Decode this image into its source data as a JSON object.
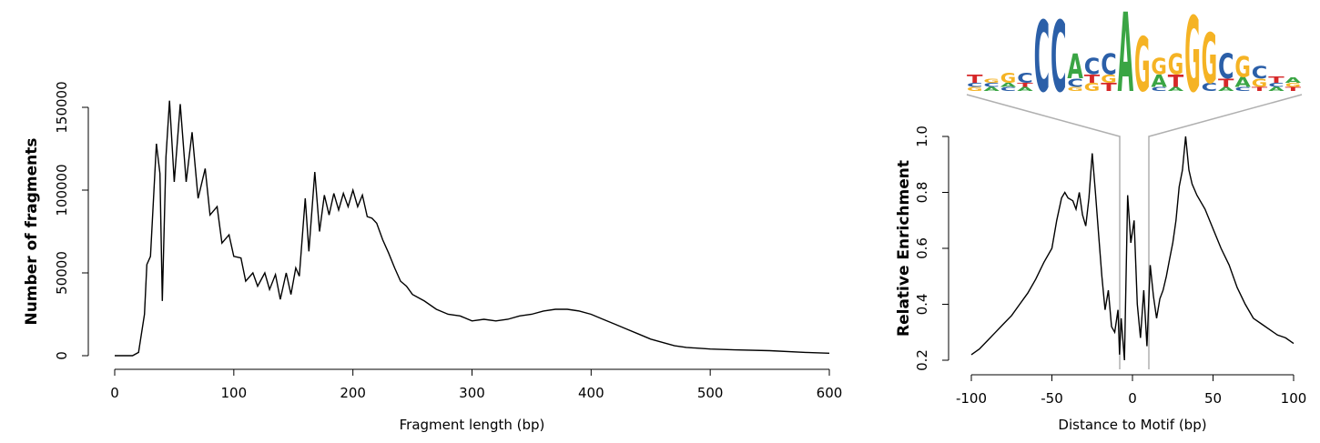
{
  "chart_data": [
    {
      "type": "line",
      "x_label": "Fragment length (bp)",
      "y_label": "Number of fragments",
      "color": "#000000",
      "xlim": [
        0,
        600
      ],
      "xticks": [
        0,
        100,
        200,
        300,
        400,
        500,
        600
      ],
      "ylim": [
        0,
        150000
      ],
      "yticks": [
        0,
        50000,
        100000,
        150000
      ],
      "x": [
        0,
        15,
        20,
        25,
        27,
        30,
        35,
        38,
        40,
        43,
        46,
        50,
        55,
        60,
        65,
        70,
        76,
        80,
        86,
        90,
        96,
        100,
        106,
        110,
        116,
        120,
        126,
        130,
        135,
        139,
        144,
        148,
        152,
        155,
        160,
        163,
        168,
        172,
        176,
        180,
        184,
        188,
        192,
        196,
        200,
        204,
        208,
        212,
        216,
        220,
        225,
        230,
        235,
        240,
        245,
        250,
        260,
        270,
        280,
        290,
        300,
        310,
        320,
        330,
        340,
        350,
        360,
        370,
        380,
        390,
        400,
        410,
        420,
        430,
        440,
        450,
        460,
        470,
        480,
        500,
        520,
        550,
        580,
        600
      ],
      "values": [
        0,
        0,
        2000,
        25000,
        55000,
        60000,
        128000,
        110000,
        33000,
        120000,
        154000,
        105000,
        152000,
        105000,
        135000,
        95000,
        113000,
        85000,
        90000,
        68000,
        73000,
        60000,
        59000,
        45000,
        50000,
        42000,
        50000,
        40000,
        49000,
        34000,
        50000,
        37000,
        53000,
        48000,
        95000,
        63000,
        111000,
        75000,
        97000,
        85000,
        98000,
        88000,
        98000,
        90000,
        100000,
        90000,
        97000,
        84000,
        83000,
        80000,
        70000,
        62000,
        53000,
        45000,
        42000,
        37000,
        33000,
        28000,
        25000,
        24000,
        21000,
        22000,
        21000,
        22000,
        24000,
        25000,
        27000,
        28000,
        28000,
        27000,
        25000,
        22000,
        19000,
        16000,
        13000,
        10000,
        8000,
        6000,
        5000,
        4000,
        3500,
        3000,
        2000,
        1500
      ]
    },
    {
      "type": "line",
      "x_label": "Distance to Motif (bp)",
      "y_label": "Relative Enrichment",
      "color": "#000000",
      "xlim": [
        -100,
        100
      ],
      "xticks": [
        -100,
        -50,
        0,
        50,
        100
      ],
      "ylim": [
        0.2,
        1.0
      ],
      "yticks": [
        0.2,
        0.4,
        0.6,
        0.8,
        {
          "value": 1.0,
          "label": "1.0"
        }
      ],
      "x": [
        -100,
        -95,
        -90,
        -85,
        -80,
        -75,
        -70,
        -65,
        -60,
        -55,
        -50,
        -47,
        -44,
        -42,
        -40,
        -37,
        -35,
        -33,
        -31,
        -29,
        -27,
        -25,
        -23,
        -21,
        -19,
        -17,
        -15,
        -13,
        -11,
        -9,
        -8,
        -7,
        -5,
        -3,
        -1,
        1,
        3,
        5,
        7,
        9,
        11,
        13,
        15,
        17,
        19,
        21,
        23,
        25,
        27,
        29,
        31,
        33,
        35,
        37,
        40,
        45,
        50,
        55,
        60,
        65,
        70,
        75,
        80,
        85,
        90,
        95,
        100
      ],
      "values": [
        0.22,
        0.24,
        0.27,
        0.3,
        0.33,
        0.36,
        0.4,
        0.44,
        0.49,
        0.55,
        0.6,
        0.7,
        0.78,
        0.8,
        0.78,
        0.77,
        0.74,
        0.8,
        0.72,
        0.68,
        0.78,
        0.94,
        0.8,
        0.65,
        0.5,
        0.38,
        0.45,
        0.32,
        0.3,
        0.38,
        0.22,
        0.35,
        0.2,
        0.79,
        0.62,
        0.7,
        0.4,
        0.28,
        0.45,
        0.25,
        0.54,
        0.43,
        0.35,
        0.42,
        0.45,
        0.5,
        0.56,
        0.62,
        0.7,
        0.82,
        0.88,
        1.0,
        0.88,
        0.83,
        0.79,
        0.74,
        0.67,
        0.6,
        0.54,
        0.46,
        0.4,
        0.35,
        0.33,
        0.31,
        0.29,
        0.28,
        0.26
      ],
      "logo_colors": {
        "A": "#3aa544",
        "C": "#2b5fa8",
        "G": "#f5b324",
        "T": "#d62728"
      },
      "motif_logo": [
        {
          "letters": [
            "T",
            "C",
            "G"
          ],
          "heights": [
            0.1,
            0.05,
            0.05
          ]
        },
        {
          "letters": [
            "G",
            "C",
            "A"
          ],
          "heights": [
            0.05,
            0.05,
            0.05
          ]
        },
        {
          "letters": [
            "G",
            "A",
            "C"
          ],
          "heights": [
            0.12,
            0.05,
            0.05
          ]
        },
        {
          "letters": [
            "C",
            "T",
            "A"
          ],
          "heights": [
            0.12,
            0.05,
            0.05
          ]
        },
        {
          "letters": [
            "C"
          ],
          "heights": [
            0.85
          ]
        },
        {
          "letters": [
            "C"
          ],
          "heights": [
            0.85
          ]
        },
        {
          "letters": [
            "A",
            "C",
            "G"
          ],
          "heights": [
            0.3,
            0.1,
            0.05
          ]
        },
        {
          "letters": [
            "C",
            "T",
            "G"
          ],
          "heights": [
            0.2,
            0.1,
            0.1
          ]
        },
        {
          "letters": [
            "C",
            "G",
            "T"
          ],
          "heights": [
            0.25,
            0.1,
            0.1
          ]
        },
        {
          "letters": [
            "A"
          ],
          "heights": [
            0.95
          ]
        },
        {
          "letters": [
            "G"
          ],
          "heights": [
            0.65
          ]
        },
        {
          "letters": [
            "G",
            "A",
            "C"
          ],
          "heights": [
            0.2,
            0.15,
            0.05
          ]
        },
        {
          "letters": [
            "G",
            "T",
            "A"
          ],
          "heights": [
            0.25,
            0.15,
            0.05
          ]
        },
        {
          "letters": [
            "G"
          ],
          "heights": [
            0.9
          ]
        },
        {
          "letters": [
            "G",
            "C"
          ],
          "heights": [
            0.6,
            0.1
          ]
        },
        {
          "letters": [
            "C",
            "T",
            "A"
          ],
          "heights": [
            0.3,
            0.1,
            0.05
          ]
        },
        {
          "letters": [
            "G",
            "A",
            "C"
          ],
          "heights": [
            0.25,
            0.12,
            0.05
          ]
        },
        {
          "letters": [
            "C",
            "G",
            "T"
          ],
          "heights": [
            0.15,
            0.1,
            0.05
          ]
        },
        {
          "letters": [
            "T",
            "C",
            "A"
          ],
          "heights": [
            0.08,
            0.05,
            0.05
          ]
        },
        {
          "letters": [
            "A",
            "G",
            "T"
          ],
          "heights": [
            0.06,
            0.05,
            0.05
          ]
        }
      ]
    }
  ]
}
